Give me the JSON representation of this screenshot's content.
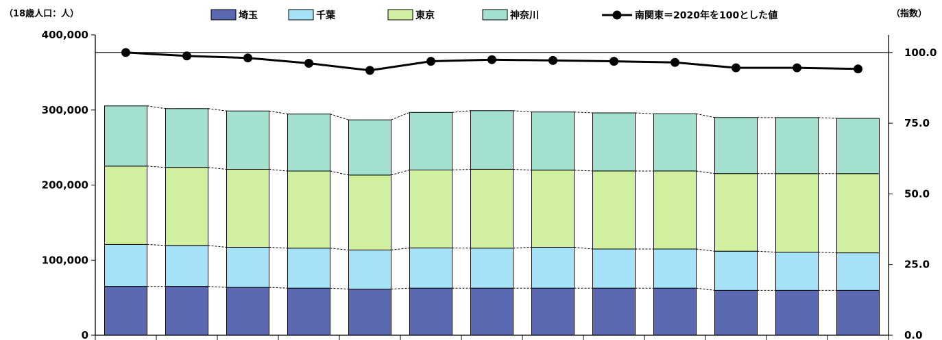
{
  "chart_data": {
    "type": "bar",
    "stacked": true,
    "grid": false,
    "legend_position": "top",
    "left_unit_label": "（18歳人口：人）",
    "right_unit_label": "（指数）",
    "left_axis": {
      "ylim": [
        0,
        400000
      ],
      "ticks": [
        0,
        100000,
        200000,
        300000,
        400000
      ],
      "tick_labels": [
        "0",
        "100,000",
        "200,000",
        "300,000",
        "400,000"
      ]
    },
    "right_axis": {
      "ylim": [
        0,
        106.25
      ],
      "ticks": [
        0,
        25,
        50,
        75,
        100
      ],
      "tick_labels": [
        "0.0",
        "25.0",
        "50.0",
        "75.0",
        "100.0"
      ],
      "reference_value": 100
    },
    "categories": [
      "",
      "",
      "",
      "",
      "",
      "",
      "",
      "",
      "",
      "",
      "",
      "",
      ""
    ],
    "series": [
      {
        "name": "埼玉",
        "color": "#5b68b2",
        "values": [
          65000,
          65000,
          63700,
          62700,
          61400,
          62700,
          62700,
          62700,
          62700,
          62700,
          59800,
          59800,
          59800
        ]
      },
      {
        "name": "千葉",
        "color": "#a5e1f7",
        "values": [
          55800,
          54500,
          53400,
          53300,
          52100,
          53500,
          53300,
          54400,
          52100,
          52100,
          52100,
          50800,
          49900
        ]
      },
      {
        "name": "東京",
        "color": "#d0f0a0",
        "values": [
          104400,
          104000,
          103900,
          102700,
          99800,
          103900,
          105000,
          102800,
          103900,
          103900,
          103400,
          104600,
          105500
        ]
      },
      {
        "name": "神奈川",
        "color": "#a3e0cf",
        "values": [
          80200,
          78300,
          77700,
          75900,
          73500,
          76700,
          78000,
          77400,
          77400,
          76200,
          74600,
          74600,
          73600
        ]
      }
    ],
    "index_series": {
      "name": "南関東＝2020年を100とした値",
      "color": "#000000",
      "values": [
        100.0,
        98.8,
        98.1,
        96.2,
        93.7,
        96.9,
        97.5,
        97.2,
        96.9,
        96.5,
        94.6,
        94.6,
        94.2
      ]
    }
  }
}
